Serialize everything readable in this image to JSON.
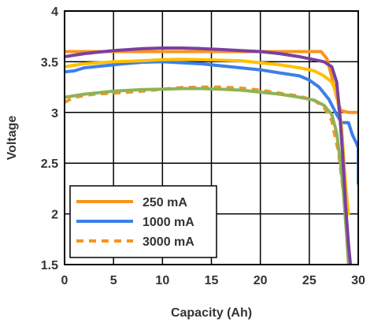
{
  "chart_data": {
    "type": "line",
    "title": "",
    "xlabel": "Capacity (Ah)",
    "ylabel": "Voltage",
    "xlim": [
      0,
      30
    ],
    "ylim": [
      1.5,
      4
    ],
    "xticks": [
      "0",
      "5",
      "10",
      "15",
      "20",
      "25",
      "30"
    ],
    "yticks": [
      "1.5",
      "2",
      "2.5",
      "3",
      "3.5",
      "4"
    ],
    "grid": true,
    "legend_position": "bottom-left",
    "series": [
      {
        "name": "250 mA",
        "color": "#f7941d",
        "style": "solid",
        "in_legend": true,
        "points": [
          [
            0,
            3.6
          ],
          [
            2,
            3.6
          ],
          [
            5,
            3.6
          ],
          [
            10,
            3.6
          ],
          [
            15,
            3.6
          ],
          [
            20,
            3.6
          ],
          [
            25,
            3.6
          ],
          [
            26.2,
            3.6
          ],
          [
            26.8,
            3.53
          ],
          [
            27.3,
            3.35
          ],
          [
            27.8,
            3.15
          ],
          [
            28.2,
            3.02
          ],
          [
            29,
            3.0
          ],
          [
            30,
            3.0
          ]
        ]
      },
      {
        "name": "1000 mA",
        "color": "#3d7fe8",
        "style": "solid",
        "in_legend": true,
        "points": [
          [
            0,
            3.4
          ],
          [
            1,
            3.41
          ],
          [
            2,
            3.44
          ],
          [
            4,
            3.46
          ],
          [
            6,
            3.48
          ],
          [
            8,
            3.495
          ],
          [
            10,
            3.5
          ],
          [
            12,
            3.49
          ],
          [
            14,
            3.48
          ],
          [
            16,
            3.46
          ],
          [
            18,
            3.44
          ],
          [
            20,
            3.42
          ],
          [
            22,
            3.39
          ],
          [
            24,
            3.36
          ],
          [
            25,
            3.32
          ],
          [
            26,
            3.25
          ],
          [
            27,
            3.13
          ],
          [
            27.8,
            2.98
          ],
          [
            28.3,
            2.9
          ],
          [
            29,
            2.9
          ],
          [
            29.4,
            2.78
          ],
          [
            29.8,
            2.7
          ],
          [
            30,
            2.65
          ],
          [
            30,
            2.3
          ]
        ]
      },
      {
        "name": "3000 mA",
        "color": "#f7941d",
        "style": "dashed",
        "in_legend": true,
        "points": [
          [
            0,
            3.1
          ],
          [
            1,
            3.15
          ],
          [
            3,
            3.18
          ],
          [
            5,
            3.19
          ],
          [
            8,
            3.21
          ],
          [
            10,
            3.23
          ],
          [
            12,
            3.245
          ],
          [
            14,
            3.25
          ],
          [
            16,
            3.25
          ],
          [
            18,
            3.24
          ],
          [
            20,
            3.22
          ],
          [
            22,
            3.19
          ],
          [
            24,
            3.16
          ],
          [
            25.5,
            3.12
          ],
          [
            26.5,
            3.05
          ],
          [
            27.3,
            2.92
          ],
          [
            28,
            2.6
          ],
          [
            28.5,
            2.2
          ],
          [
            29,
            2.0
          ]
        ]
      },
      {
        "name": "",
        "color": "#ffc000",
        "style": "solid",
        "in_legend": false,
        "points": [
          [
            0,
            3.45
          ],
          [
            2,
            3.48
          ],
          [
            5,
            3.5
          ],
          [
            8,
            3.51
          ],
          [
            10,
            3.52
          ],
          [
            12,
            3.525
          ],
          [
            14,
            3.52
          ],
          [
            16,
            3.515
          ],
          [
            18,
            3.51
          ],
          [
            20,
            3.49
          ],
          [
            22,
            3.47
          ],
          [
            24,
            3.44
          ],
          [
            25.5,
            3.41
          ],
          [
            26.5,
            3.36
          ],
          [
            27.3,
            3.3
          ],
          [
            27.8,
            3.18
          ],
          [
            28.3,
            2.85
          ],
          [
            28.7,
            2.3
          ],
          [
            29,
            2.0
          ]
        ]
      },
      {
        "name": "",
        "color": "#7b3fa0",
        "style": "solid",
        "in_legend": false,
        "points": [
          [
            0,
            3.55
          ],
          [
            2,
            3.58
          ],
          [
            5,
            3.61
          ],
          [
            8,
            3.63
          ],
          [
            10,
            3.635
          ],
          [
            12,
            3.635
          ],
          [
            14,
            3.63
          ],
          [
            16,
            3.62
          ],
          [
            18,
            3.61
          ],
          [
            20,
            3.6
          ],
          [
            22,
            3.58
          ],
          [
            24,
            3.55
          ],
          [
            25.5,
            3.52
          ],
          [
            26.5,
            3.5
          ],
          [
            27.3,
            3.45
          ],
          [
            27.8,
            3.3
          ],
          [
            28.1,
            3.0
          ],
          [
            28.4,
            2.6
          ],
          [
            28.7,
            2.1
          ],
          [
            29.0,
            1.7
          ],
          [
            29.2,
            1.5
          ]
        ]
      },
      {
        "name": "",
        "color": "#8db356",
        "style": "solid",
        "in_legend": false,
        "points": [
          [
            0,
            3.15
          ],
          [
            2,
            3.18
          ],
          [
            5,
            3.21
          ],
          [
            8,
            3.225
          ],
          [
            10,
            3.23
          ],
          [
            12,
            3.235
          ],
          [
            14,
            3.235
          ],
          [
            16,
            3.23
          ],
          [
            18,
            3.22
          ],
          [
            20,
            3.2
          ],
          [
            22,
            3.18
          ],
          [
            24,
            3.15
          ],
          [
            25.5,
            3.12
          ],
          [
            26.5,
            3.07
          ],
          [
            27.3,
            2.98
          ],
          [
            27.8,
            2.8
          ],
          [
            28.2,
            2.5
          ],
          [
            28.5,
            2.2
          ],
          [
            28.8,
            1.8
          ],
          [
            29.0,
            1.5
          ]
        ]
      }
    ]
  }
}
